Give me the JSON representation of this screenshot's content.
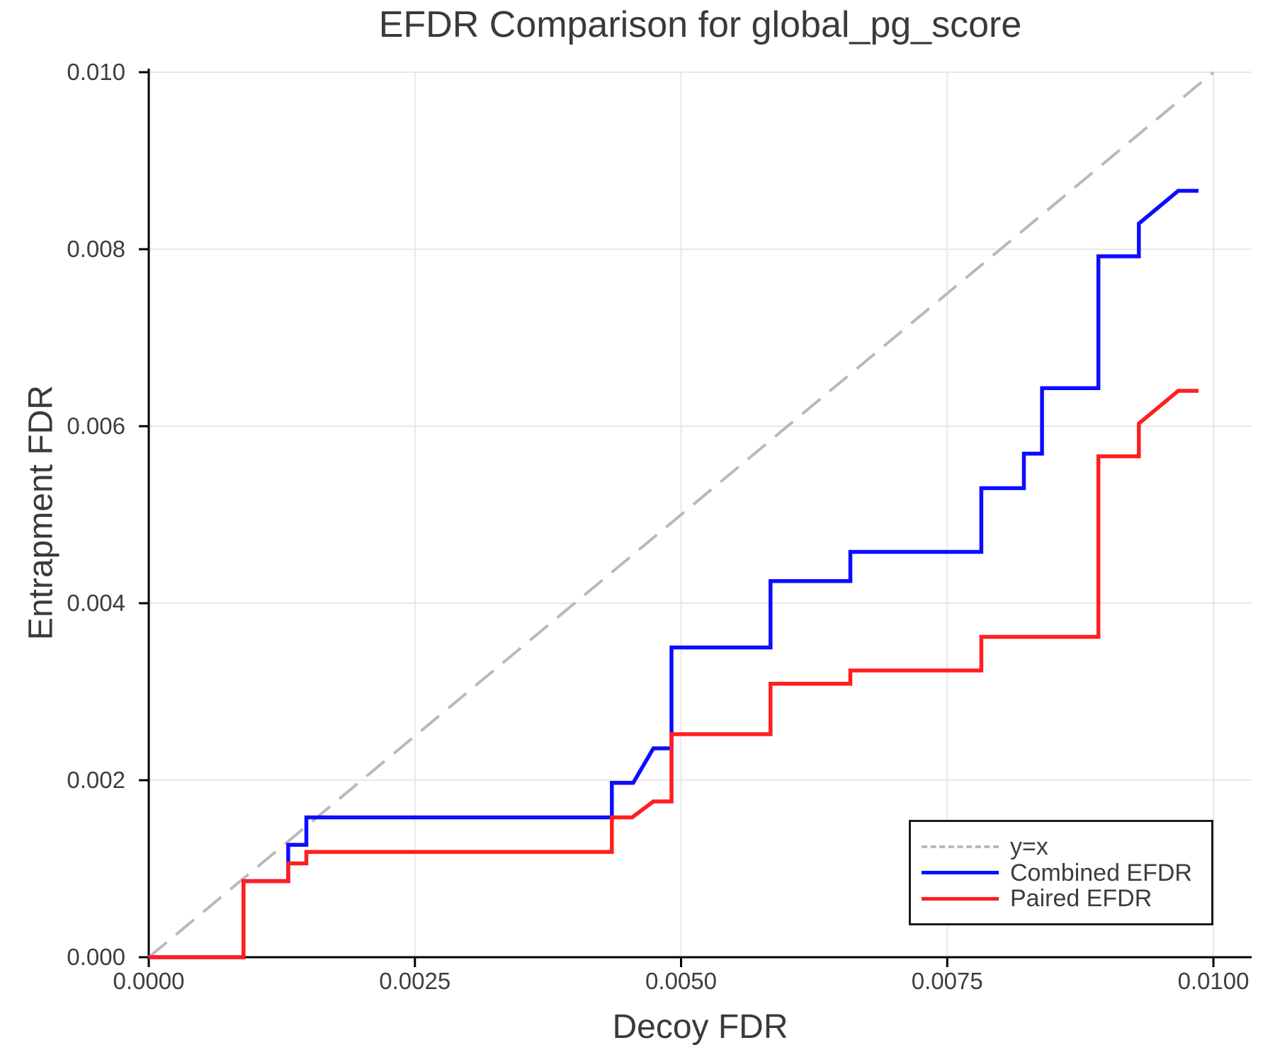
{
  "title": "EFDR Comparison for global_pg_score",
  "colors": {
    "combined": "#0d0dff",
    "paired": "#ff1f1f",
    "reference": "#b9b9b9",
    "grid": "#e8e8e8",
    "spine": "#000000",
    "text": "#3a3a3a",
    "tick_text": "#3d3d3d",
    "legend_border": "#1a1a1a"
  },
  "chart_data": {
    "type": "line",
    "title": "EFDR Comparison for global_pg_score",
    "xlabel": "Decoy FDR",
    "ylabel": "Entrapment FDR",
    "grid": true,
    "legend_position": "inside-lower-right",
    "xlim": [
      0,
      0.010359
    ],
    "ylim": [
      0,
      0.010016
    ],
    "x_ticks": {
      "values": [
        0,
        0.0025,
        0.005,
        0.0075,
        0.01
      ],
      "labels": [
        "0.0000",
        "0.0025",
        "0.0050",
        "0.0075",
        "0.0100"
      ]
    },
    "y_ticks": {
      "values": [
        0,
        0.002,
        0.004,
        0.006,
        0.008,
        0.01
      ],
      "labels": [
        "0.000",
        "0.002",
        "0.004",
        "0.006",
        "0.008",
        "0.010"
      ]
    },
    "series": [
      {
        "id": "yx-reference",
        "name": "y=x",
        "color": "#b9b9b9",
        "dash": true,
        "width": 4,
        "points": [
          [
            0,
            0
          ],
          [
            0.01,
            0.01
          ]
        ]
      },
      {
        "id": "combined-efdr",
        "name": "Combined EFDR",
        "color": "#0d0dff",
        "dash": false,
        "width": 5.5,
        "points": [
          [
            0,
            0
          ],
          [
            0.00089,
            0
          ],
          [
            0.00089,
            0.00086
          ],
          [
            0.00131,
            0.00086
          ],
          [
            0.00131,
            0.00127
          ],
          [
            0.00148,
            0.00127
          ],
          [
            0.00148,
            0.00158
          ],
          [
            0.00435,
            0.00158
          ],
          [
            0.00435,
            0.00197
          ],
          [
            0.00455,
            0.00197
          ],
          [
            0.00474,
            0.00236
          ],
          [
            0.00491,
            0.00236
          ],
          [
            0.00491,
            0.0035
          ],
          [
            0.00584,
            0.0035
          ],
          [
            0.00584,
            0.00425
          ],
          [
            0.00659,
            0.00425
          ],
          [
            0.00659,
            0.00458
          ],
          [
            0.00782,
            0.00458
          ],
          [
            0.00782,
            0.0053
          ],
          [
            0.00822,
            0.0053
          ],
          [
            0.00822,
            0.00569
          ],
          [
            0.00839,
            0.00569
          ],
          [
            0.00839,
            0.00643
          ],
          [
            0.00892,
            0.00643
          ],
          [
            0.00892,
            0.00792
          ],
          [
            0.0093,
            0.00792
          ],
          [
            0.0093,
            0.00829
          ],
          [
            0.00967,
            0.00866
          ],
          [
            0.00986,
            0.00866
          ]
        ]
      },
      {
        "id": "paired-efdr",
        "name": "Paired EFDR",
        "color": "#ff1f1f",
        "dash": false,
        "width": 5.5,
        "points": [
          [
            0,
            0
          ],
          [
            0.00089,
            0
          ],
          [
            0.00089,
            0.00086
          ],
          [
            0.00131,
            0.00086
          ],
          [
            0.00131,
            0.00106
          ],
          [
            0.00148,
            0.00106
          ],
          [
            0.00148,
            0.00119
          ],
          [
            0.00435,
            0.00119
          ],
          [
            0.00435,
            0.00158
          ],
          [
            0.00454,
            0.00158
          ],
          [
            0.00474,
            0.00176
          ],
          [
            0.00491,
            0.00176
          ],
          [
            0.00491,
            0.00252
          ],
          [
            0.00584,
            0.00252
          ],
          [
            0.00584,
            0.00309
          ],
          [
            0.00659,
            0.00309
          ],
          [
            0.00659,
            0.00324
          ],
          [
            0.00782,
            0.00324
          ],
          [
            0.00782,
            0.00362
          ],
          [
            0.00892,
            0.00362
          ],
          [
            0.00892,
            0.00566
          ],
          [
            0.0093,
            0.00566
          ],
          [
            0.0093,
            0.00603
          ],
          [
            0.00967,
            0.0064
          ],
          [
            0.00986,
            0.0064
          ]
        ]
      }
    ]
  },
  "legend": {
    "items": [
      {
        "label": "y=x"
      },
      {
        "label": "Combined EFDR"
      },
      {
        "label": "Paired EFDR"
      }
    ]
  }
}
